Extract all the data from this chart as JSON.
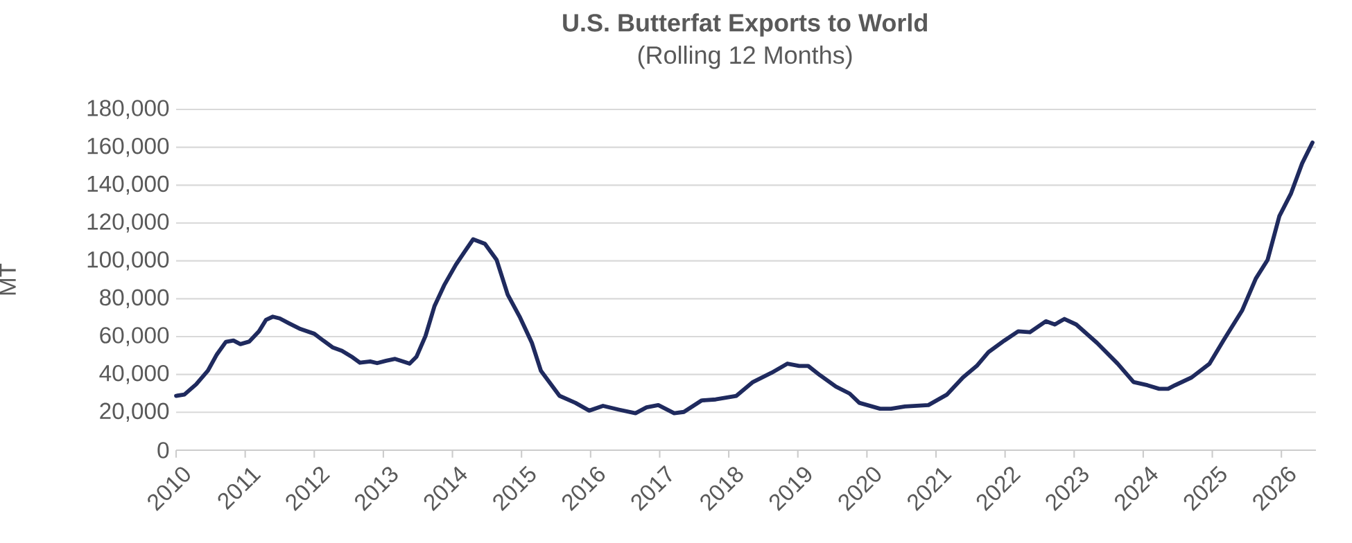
{
  "chart_data": {
    "type": "line",
    "title": "U.S. Butterfat Exports to World",
    "subtitle": "(Rolling 12 Months)",
    "ylabel": "MT",
    "xlim": [
      2010,
      2026.5
    ],
    "xticks": [
      2010,
      2011,
      2012,
      2013,
      2014,
      2015,
      2016,
      2017,
      2018,
      2019,
      2020,
      2021,
      2022,
      2023,
      2024,
      2025,
      2026
    ],
    "ylim": [
      0,
      180000
    ],
    "yticks": [
      {
        "value": 0,
        "label": "0"
      },
      {
        "value": 20000,
        "label": "20,000"
      },
      {
        "value": 40000,
        "label": "40,000"
      },
      {
        "value": 60000,
        "label": "60,000"
      },
      {
        "value": 80000,
        "label": "80,000"
      },
      {
        "value": 100000,
        "label": "100,000"
      },
      {
        "value": 120000,
        "label": "120,000"
      },
      {
        "value": 140000,
        "label": "140,000"
      },
      {
        "value": 160000,
        "label": "160,000"
      },
      {
        "value": 180000,
        "label": "180,000"
      }
    ],
    "grid": "y",
    "series": [
      {
        "color": "#1f2a5e",
        "x": [
          2010.0,
          2010.12,
          2010.29,
          2010.46,
          2010.59,
          2010.72,
          2010.83,
          2010.93,
          2011.06,
          2011.2,
          2011.3,
          2011.4,
          2011.5,
          2011.63,
          2011.8,
          2012.0,
          2012.13,
          2012.27,
          2012.4,
          2012.54,
          2012.66,
          2012.81,
          2012.91,
          2013.04,
          2013.17,
          2013.28,
          2013.38,
          2013.48,
          2013.61,
          2013.74,
          2013.88,
          2014.05,
          2014.18,
          2014.3,
          2014.47,
          2014.64,
          2014.8,
          2014.98,
          2015.15,
          2015.28,
          2015.55,
          2015.78,
          2015.98,
          2016.18,
          2016.41,
          2016.65,
          2016.81,
          2016.98,
          2017.21,
          2017.35,
          2017.61,
          2017.81,
          2018.11,
          2018.35,
          2018.62,
          2018.85,
          2019.02,
          2019.15,
          2019.32,
          2019.55,
          2019.75,
          2019.89,
          2020.19,
          2020.35,
          2020.55,
          2020.89,
          2021.16,
          2021.39,
          2021.59,
          2021.76,
          2021.99,
          2022.19,
          2022.36,
          2022.59,
          2022.72,
          2022.86,
          2023.03,
          2023.33,
          2023.63,
          2023.86,
          2024.06,
          2024.23,
          2024.36,
          2024.46,
          2024.7,
          2024.96,
          2025.16,
          2025.43,
          2025.63,
          2025.8,
          2025.97,
          2026.14,
          2026.3,
          2026.45
        ],
        "values": [
          28700,
          29400,
          34800,
          42000,
          50600,
          57200,
          57900,
          56000,
          57400,
          62800,
          68800,
          70500,
          69600,
          67100,
          64000,
          61500,
          57900,
          54200,
          52500,
          49400,
          46200,
          46900,
          46000,
          47200,
          48200,
          46900,
          45700,
          49400,
          60300,
          76100,
          87100,
          98000,
          105000,
          111400,
          109000,
          100500,
          82200,
          70000,
          56700,
          42000,
          28700,
          25000,
          20900,
          23400,
          21400,
          19500,
          22600,
          23800,
          19500,
          20200,
          26300,
          26800,
          28700,
          36000,
          40900,
          45700,
          44500,
          44500,
          39600,
          33600,
          29900,
          25000,
          21900,
          21900,
          23100,
          23800,
          29400,
          38400,
          44500,
          51800,
          57900,
          62800,
          62300,
          68100,
          66400,
          69300,
          66400,
          56700,
          45700,
          36000,
          34300,
          32400,
          32400,
          34300,
          38400,
          45700,
          57900,
          73700,
          90700,
          100500,
          123600,
          135700,
          151500,
          162500
        ]
      }
    ]
  }
}
